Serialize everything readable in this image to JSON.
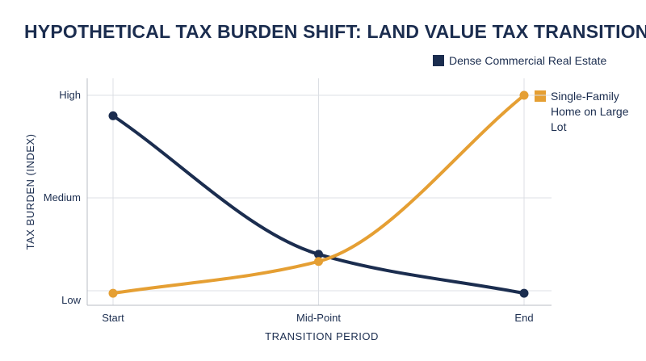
{
  "chart_data": {
    "type": "line",
    "title": "HYPOTHETICAL TAX BURDEN SHIFT: LAND VALUE TAX TRANSITION",
    "xlabel": "TRANSITION PERIOD",
    "ylabel": "TAX BURDEN (INDEX)",
    "categories": [
      "Start",
      "Mid-Point",
      "End"
    ],
    "y_tick_labels": [
      "Low",
      "Medium",
      "High"
    ],
    "ylim": [
      0,
      2
    ],
    "grid": true,
    "legend_position": "right",
    "series": [
      {
        "name": "Dense Commercial Real Estate",
        "color": "#1b2d4f",
        "x": [
          0,
          0.5,
          1
        ],
        "y": [
          1.8,
          0.45,
          0.07
        ]
      },
      {
        "name": "Single-Family Home on Large Lot",
        "color": "#e59f33",
        "x": [
          0,
          0.5,
          1
        ],
        "y": [
          0.07,
          0.38,
          2.0
        ]
      }
    ]
  },
  "legend": {
    "items": [
      {
        "label": "Dense Commercial Real Estate",
        "color": "#1b2d4f"
      },
      {
        "label": "Single-Family Home on Large Lot",
        "color": "#e59f33"
      }
    ]
  }
}
